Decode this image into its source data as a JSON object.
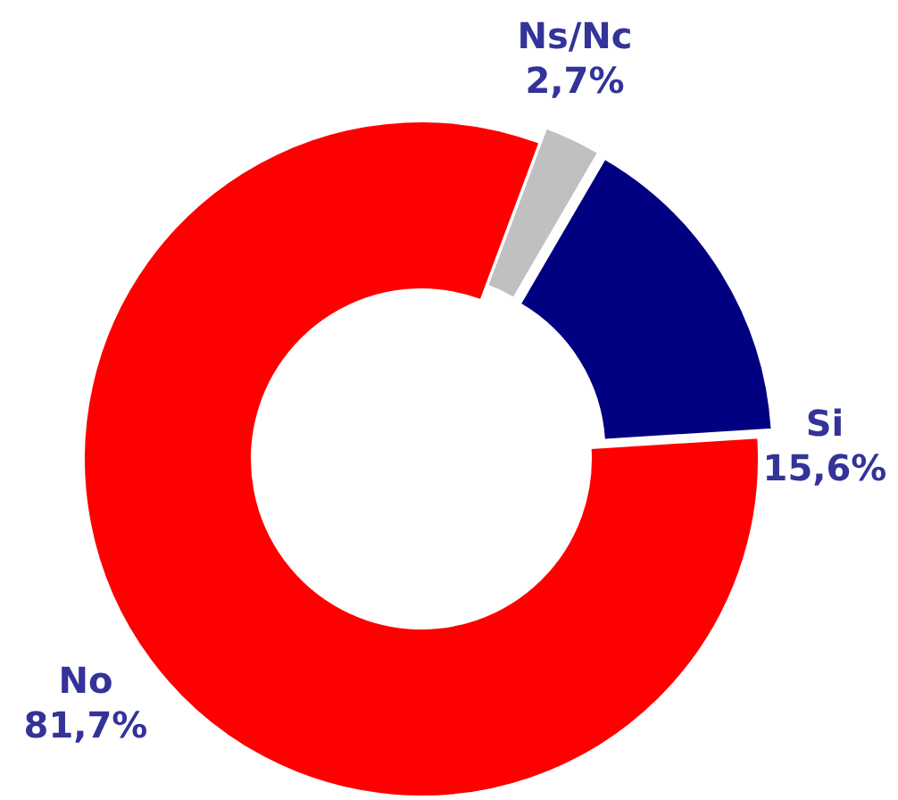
{
  "chart_data": {
    "type": "donut",
    "categories": [
      "Ns/Nc",
      "Si",
      "No"
    ],
    "values": [
      2.7,
      15.6,
      81.7
    ],
    "colors": [
      "#c0c0c0",
      "#000080",
      "#ff0000"
    ],
    "value_labels": [
      "2,7%",
      "15,6%",
      "81,7%"
    ]
  }
}
